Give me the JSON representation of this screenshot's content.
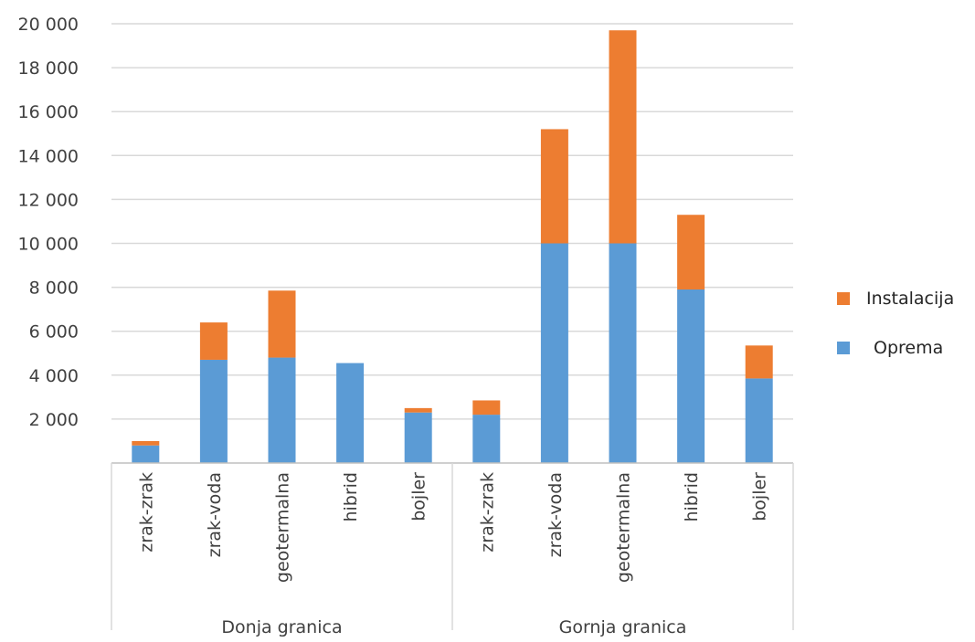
{
  "chart_data": {
    "type": "bar",
    "stacked": true,
    "title": "",
    "xlabel": "",
    "ylabel": "",
    "ylim": [
      0,
      20000
    ],
    "yticks": [
      2000,
      4000,
      6000,
      8000,
      10000,
      12000,
      14000,
      16000,
      18000,
      20000
    ],
    "ytick_labels": [
      "2 000",
      "4 000",
      "6 000",
      "8 000",
      "10 000",
      "12 000",
      "14 000",
      "16 000",
      "18 000",
      "20 000"
    ],
    "grid": true,
    "legend_position": "right",
    "groups": [
      {
        "label": "Donja granica",
        "categories": [
          "zrak-zrak",
          "zrak-voda",
          "geotermalna",
          "hibrid",
          "bojler"
        ]
      },
      {
        "label": "Gornja granica",
        "categories": [
          "zrak-zrak",
          "zrak-voda",
          "geotermalna",
          "hibrid",
          "bojler"
        ]
      }
    ],
    "series": [
      {
        "name": "Oprema",
        "color": "#5b9bd5",
        "values": [
          800,
          4700,
          4800,
          4550,
          2300,
          2200,
          10000,
          10000,
          7900,
          3850
        ]
      },
      {
        "name": "Instalacija",
        "color": "#ed7d31",
        "values": [
          200,
          1700,
          3050,
          0,
          200,
          650,
          5200,
          9700,
          3400,
          1500
        ]
      }
    ]
  },
  "legend": {
    "items": [
      {
        "label": "Instalacija",
        "color": "#ed7d31"
      },
      {
        "label": "Oprema",
        "color": "#5b9bd5"
      }
    ]
  }
}
